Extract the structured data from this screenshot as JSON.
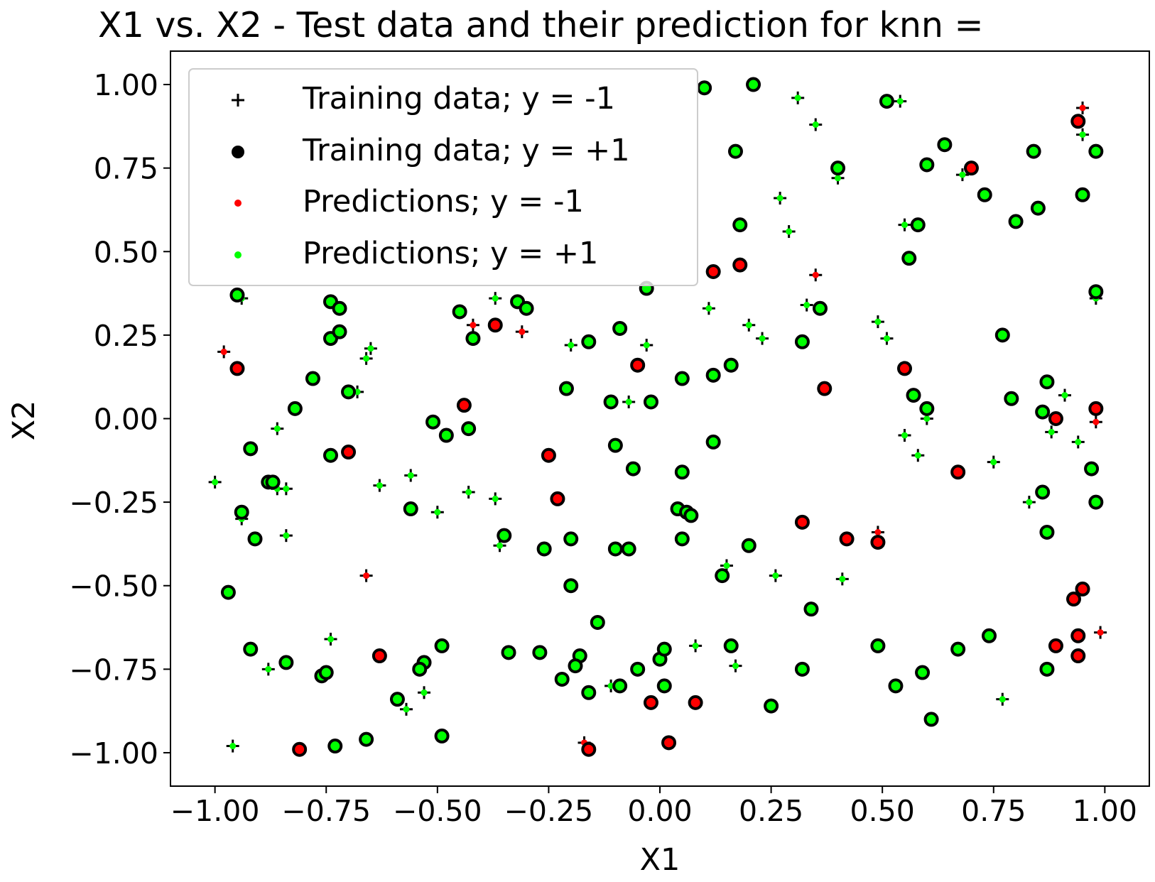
{
  "chart_data": {
    "type": "scatter",
    "title": "X1 vs. X2 - Test data and their prediction for knn =",
    "xlabel": "X1",
    "ylabel": "X2",
    "xlim": [
      -1.1,
      1.1
    ],
    "ylim": [
      -1.1,
      1.1
    ],
    "xticks": [
      -1.0,
      -0.75,
      -0.5,
      -0.25,
      0.0,
      0.25,
      0.5,
      0.75,
      1.0
    ],
    "yticks": [
      -1.0,
      -0.75,
      -0.5,
      -0.25,
      0.0,
      0.25,
      0.5,
      0.75,
      1.0
    ],
    "xtick_labels": [
      "−1.00",
      "−0.75",
      "−0.50",
      "−0.25",
      "0.00",
      "0.25",
      "0.50",
      "0.75",
      "1.00"
    ],
    "ytick_labels": [
      "−1.00",
      "−0.75",
      "−0.50",
      "−0.25",
      "0.00",
      "0.25",
      "0.50",
      "0.75",
      "1.00"
    ],
    "grid": false,
    "legend_position": "top-left",
    "colors": {
      "pred_neg": "#ff0000",
      "pred_pos": "#00ff00",
      "training": "#000000"
    },
    "series": [
      {
        "name": "Training data; y = -1",
        "marker": "plus",
        "points": [
          [
            0.31,
            0.96
          ],
          [
            0.35,
            0.88
          ],
          [
            0.54,
            0.95
          ],
          [
            0.95,
            0.93
          ],
          [
            0.95,
            0.85
          ],
          [
            0.27,
            0.66
          ],
          [
            0.29,
            0.56
          ],
          [
            0.4,
            0.72
          ],
          [
            0.68,
            0.73
          ],
          [
            0.55,
            0.58
          ],
          [
            0.35,
            0.43
          ],
          [
            0.33,
            0.34
          ],
          [
            0.11,
            0.33
          ],
          [
            0.2,
            0.28
          ],
          [
            0.23,
            0.24
          ],
          [
            0.49,
            0.29
          ],
          [
            0.51,
            0.24
          ],
          [
            0.98,
            0.36
          ],
          [
            -0.98,
            0.2
          ],
          [
            -0.94,
            0.36
          ],
          [
            -0.42,
            0.28
          ],
          [
            -0.37,
            0.36
          ],
          [
            -0.31,
            0.26
          ],
          [
            -0.2,
            0.22
          ],
          [
            -0.03,
            0.22
          ],
          [
            -0.65,
            0.21
          ],
          [
            -0.66,
            0.18
          ],
          [
            -0.68,
            0.08
          ],
          [
            -0.86,
            -0.03
          ],
          [
            -0.07,
            0.05
          ],
          [
            0.6,
            0.0
          ],
          [
            0.91,
            0.07
          ],
          [
            0.98,
            -0.01
          ],
          [
            0.88,
            -0.04
          ],
          [
            0.94,
            -0.07
          ],
          [
            0.55,
            -0.05
          ],
          [
            0.58,
            -0.11
          ],
          [
            0.75,
            -0.13
          ],
          [
            0.83,
            -0.25
          ],
          [
            -1.0,
            -0.19
          ],
          [
            -0.86,
            -0.21
          ],
          [
            -0.84,
            -0.21
          ],
          [
            -0.63,
            -0.2
          ],
          [
            -0.56,
            -0.17
          ],
          [
            -0.43,
            -0.22
          ],
          [
            -0.37,
            -0.24
          ],
          [
            -0.5,
            -0.28
          ],
          [
            -0.94,
            -0.3
          ],
          [
            -0.84,
            -0.35
          ],
          [
            -0.36,
            -0.38
          ],
          [
            0.49,
            -0.34
          ],
          [
            0.15,
            -0.44
          ],
          [
            0.26,
            -0.47
          ],
          [
            0.41,
            -0.48
          ],
          [
            -0.66,
            -0.47
          ],
          [
            -0.74,
            -0.66
          ],
          [
            -0.88,
            -0.75
          ],
          [
            0.08,
            -0.68
          ],
          [
            0.17,
            -0.74
          ],
          [
            -0.53,
            -0.82
          ],
          [
            -0.57,
            -0.87
          ],
          [
            -0.11,
            -0.8
          ],
          [
            0.77,
            -0.84
          ],
          [
            0.99,
            -0.64
          ],
          [
            -0.96,
            -0.98
          ],
          [
            -0.17,
            -0.97
          ]
        ]
      },
      {
        "name": "Training data; y = +1",
        "marker": "circle",
        "points": [
          [
            0.1,
            0.99
          ],
          [
            0.21,
            1.0
          ],
          [
            0.51,
            0.95
          ],
          [
            0.17,
            0.8
          ],
          [
            0.4,
            0.75
          ],
          [
            0.64,
            0.82
          ],
          [
            0.6,
            0.76
          ],
          [
            0.7,
            0.75
          ],
          [
            0.84,
            0.8
          ],
          [
            0.98,
            0.8
          ],
          [
            0.94,
            0.89
          ],
          [
            0.95,
            0.67
          ],
          [
            0.73,
            0.67
          ],
          [
            0.85,
            0.63
          ],
          [
            0.8,
            0.59
          ],
          [
            0.58,
            0.58
          ],
          [
            0.18,
            0.58
          ],
          [
            0.56,
            0.48
          ],
          [
            0.18,
            0.46
          ],
          [
            0.12,
            0.44
          ],
          [
            0.36,
            0.33
          ],
          [
            0.98,
            0.38
          ],
          [
            -0.95,
            0.37
          ],
          [
            -0.74,
            0.35
          ],
          [
            -0.72,
            0.33
          ],
          [
            -0.45,
            0.32
          ],
          [
            -0.32,
            0.35
          ],
          [
            -0.3,
            0.33
          ],
          [
            -0.37,
            0.28
          ],
          [
            -0.74,
            0.24
          ],
          [
            -0.72,
            0.26
          ],
          [
            -0.42,
            0.24
          ],
          [
            -0.16,
            0.23
          ],
          [
            -0.09,
            0.27
          ],
          [
            -0.03,
            0.39
          ],
          [
            0.32,
            0.23
          ],
          [
            0.77,
            0.25
          ],
          [
            -0.05,
            0.16
          ],
          [
            0.05,
            0.12
          ],
          [
            0.12,
            0.13
          ],
          [
            0.16,
            0.16
          ],
          [
            0.55,
            0.15
          ],
          [
            0.37,
            0.09
          ],
          [
            -0.95,
            0.15
          ],
          [
            -0.78,
            0.12
          ],
          [
            -0.7,
            0.08
          ],
          [
            -0.21,
            0.09
          ],
          [
            -0.11,
            0.05
          ],
          [
            -0.02,
            0.05
          ],
          [
            0.57,
            0.07
          ],
          [
            0.6,
            0.03
          ],
          [
            0.79,
            0.06
          ],
          [
            0.87,
            0.11
          ],
          [
            0.86,
            0.02
          ],
          [
            0.89,
            0.0
          ],
          [
            0.98,
            0.03
          ],
          [
            -0.82,
            0.03
          ],
          [
            -0.44,
            0.04
          ],
          [
            -0.51,
            -0.01
          ],
          [
            -0.43,
            -0.03
          ],
          [
            -0.48,
            -0.05
          ],
          [
            -0.92,
            -0.09
          ],
          [
            -0.74,
            -0.11
          ],
          [
            -0.7,
            -0.1
          ],
          [
            -0.25,
            -0.11
          ],
          [
            -0.1,
            -0.08
          ],
          [
            0.12,
            -0.07
          ],
          [
            -0.06,
            -0.15
          ],
          [
            0.05,
            -0.16
          ],
          [
            0.67,
            -0.16
          ],
          [
            0.97,
            -0.15
          ],
          [
            -0.88,
            -0.19
          ],
          [
            -0.87,
            -0.19
          ],
          [
            -0.56,
            -0.27
          ],
          [
            -0.23,
            -0.24
          ],
          [
            0.04,
            -0.27
          ],
          [
            0.06,
            -0.28
          ],
          [
            0.07,
            -0.29
          ],
          [
            0.86,
            -0.22
          ],
          [
            0.98,
            -0.25
          ],
          [
            -0.94,
            -0.28
          ],
          [
            -0.91,
            -0.36
          ],
          [
            -0.35,
            -0.35
          ],
          [
            -0.26,
            -0.39
          ],
          [
            -0.2,
            -0.36
          ],
          [
            -0.1,
            -0.39
          ],
          [
            -0.07,
            -0.39
          ],
          [
            0.05,
            -0.36
          ],
          [
            0.2,
            -0.38
          ],
          [
            0.32,
            -0.31
          ],
          [
            0.42,
            -0.36
          ],
          [
            0.49,
            -0.37
          ],
          [
            0.87,
            -0.34
          ],
          [
            0.14,
            -0.47
          ],
          [
            -0.2,
            -0.5
          ],
          [
            -0.97,
            -0.52
          ],
          [
            0.34,
            -0.57
          ],
          [
            -0.14,
            -0.61
          ],
          [
            0.93,
            -0.54
          ],
          [
            0.95,
            -0.51
          ],
          [
            -0.92,
            -0.69
          ],
          [
            -0.84,
            -0.73
          ],
          [
            -0.76,
            -0.77
          ],
          [
            -0.75,
            -0.76
          ],
          [
            -0.63,
            -0.71
          ],
          [
            -0.53,
            -0.73
          ],
          [
            -0.54,
            -0.75
          ],
          [
            -0.49,
            -0.68
          ],
          [
            -0.34,
            -0.7
          ],
          [
            -0.27,
            -0.7
          ],
          [
            -0.18,
            -0.71
          ],
          [
            -0.19,
            -0.74
          ],
          [
            -0.22,
            -0.78
          ],
          [
            -0.16,
            -0.82
          ],
          [
            -0.09,
            -0.8
          ],
          [
            -0.05,
            -0.75
          ],
          [
            0.0,
            -0.72
          ],
          [
            0.01,
            -0.69
          ],
          [
            0.01,
            -0.8
          ],
          [
            0.16,
            -0.68
          ],
          [
            0.32,
            -0.75
          ],
          [
            0.49,
            -0.68
          ],
          [
            0.53,
            -0.8
          ],
          [
            0.59,
            -0.76
          ],
          [
            0.67,
            -0.69
          ],
          [
            0.74,
            -0.65
          ],
          [
            0.87,
            -0.75
          ],
          [
            0.89,
            -0.68
          ],
          [
            0.94,
            -0.65
          ],
          [
            0.94,
            -0.71
          ],
          [
            -0.59,
            -0.84
          ],
          [
            -0.02,
            -0.85
          ],
          [
            0.08,
            -0.85
          ],
          [
            0.25,
            -0.86
          ],
          [
            0.61,
            -0.9
          ],
          [
            -0.81,
            -0.99
          ],
          [
            -0.73,
            -0.98
          ],
          [
            -0.66,
            -0.96
          ],
          [
            -0.49,
            -0.95
          ],
          [
            -0.16,
            -0.99
          ],
          [
            0.02,
            -0.97
          ]
        ]
      },
      {
        "name": "Predictions; y = -1",
        "marker": "dot",
        "points": [
          [
            0.35,
            0.43
          ],
          [
            0.95,
            0.93
          ],
          [
            0.94,
            0.89
          ],
          [
            0.7,
            0.75
          ],
          [
            0.18,
            0.46
          ],
          [
            0.12,
            0.44
          ],
          [
            -0.98,
            0.2
          ],
          [
            -0.42,
            0.28
          ],
          [
            -0.37,
            0.28
          ],
          [
            -0.31,
            0.26
          ],
          [
            -0.95,
            0.15
          ],
          [
            -0.05,
            0.16
          ],
          [
            0.55,
            0.15
          ],
          [
            0.37,
            0.09
          ],
          [
            0.98,
            0.03
          ],
          [
            0.89,
            0.0
          ],
          [
            0.98,
            -0.01
          ],
          [
            -0.44,
            0.04
          ],
          [
            -0.7,
            -0.1
          ],
          [
            -0.25,
            -0.11
          ],
          [
            0.67,
            -0.16
          ],
          [
            -0.23,
            -0.24
          ],
          [
            0.32,
            -0.31
          ],
          [
            0.42,
            -0.36
          ],
          [
            0.49,
            -0.37
          ],
          [
            0.49,
            -0.34
          ],
          [
            -0.66,
            -0.47
          ],
          [
            0.93,
            -0.54
          ],
          [
            0.95,
            -0.51
          ],
          [
            0.99,
            -0.64
          ],
          [
            -0.63,
            -0.71
          ],
          [
            0.89,
            -0.68
          ],
          [
            0.94,
            -0.65
          ],
          [
            0.94,
            -0.71
          ],
          [
            -0.02,
            -0.85
          ],
          [
            0.08,
            -0.85
          ],
          [
            -0.81,
            -0.99
          ],
          [
            -0.17,
            -0.97
          ],
          [
            -0.16,
            -0.99
          ],
          [
            0.02,
            -0.97
          ]
        ]
      },
      {
        "name": "Predictions; y = +1",
        "marker": "dot",
        "points": []
      }
    ]
  }
}
